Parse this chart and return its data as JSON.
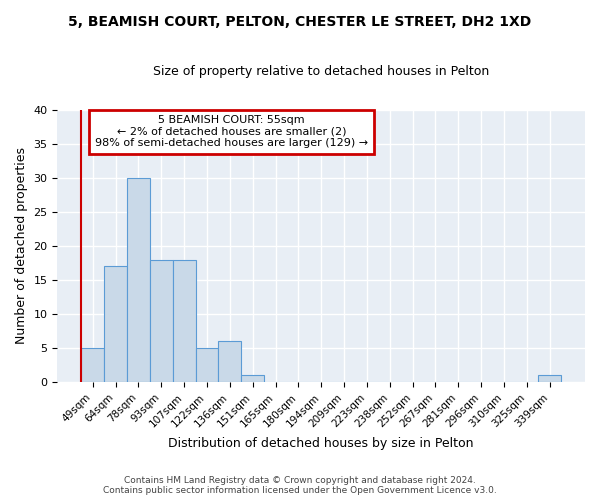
{
  "title1": "5, BEAMISH COURT, PELTON, CHESTER LE STREET, DH2 1XD",
  "title2": "Size of property relative to detached houses in Pelton",
  "xlabel": "Distribution of detached houses by size in Pelton",
  "ylabel": "Number of detached properties",
  "categories": [
    "49sqm",
    "64sqm",
    "78sqm",
    "93sqm",
    "107sqm",
    "122sqm",
    "136sqm",
    "151sqm",
    "165sqm",
    "180sqm",
    "194sqm",
    "209sqm",
    "223sqm",
    "238sqm",
    "252sqm",
    "267sqm",
    "281sqm",
    "296sqm",
    "310sqm",
    "325sqm",
    "339sqm"
  ],
  "values": [
    5,
    17,
    30,
    18,
    18,
    5,
    6,
    1,
    0,
    0,
    0,
    0,
    0,
    0,
    0,
    0,
    0,
    0,
    0,
    0,
    1
  ],
  "bar_color": "#c9d9e8",
  "bar_edge_color": "#5b9bd5",
  "annotation_text_line1": "5 BEAMISH COURT: 55sqm",
  "annotation_text_line2": "← 2% of detached houses are smaller (2)",
  "annotation_text_line3": "98% of semi-detached houses are larger (129) →",
  "annotation_box_color": "#ffffff",
  "annotation_box_edge_color": "#cc0000",
  "ylim": [
    0,
    40
  ],
  "yticks": [
    0,
    5,
    10,
    15,
    20,
    25,
    30,
    35,
    40
  ],
  "footer_line1": "Contains HM Land Registry data © Crown copyright and database right 2024.",
  "footer_line2": "Contains public sector information licensed under the Open Government Licence v3.0.",
  "bg_color": "#ffffff",
  "plot_bg_color": "#e8eef5",
  "grid_color": "#ffffff",
  "red_line_color": "#cc0000"
}
